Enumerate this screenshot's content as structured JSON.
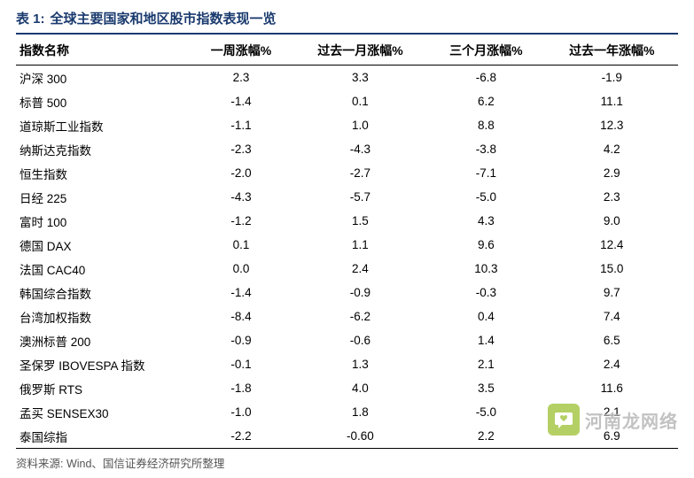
{
  "table": {
    "type": "table",
    "label": "表 1:",
    "title": "全球主要国家和地区股市指数表现一览",
    "title_color": "#1a3a6e",
    "title_fontsize": 15,
    "header_border_color": "#1a3a6e",
    "row_border_color": "#000000",
    "background_color": "#ffffff",
    "columns": [
      "指数名称",
      "一周涨幅%",
      "过去一月涨幅%",
      "三个月涨幅%",
      "过去一年涨幅%"
    ],
    "column_widths": [
      "26%",
      "16%",
      "20%",
      "18%",
      "20%"
    ],
    "column_align": [
      "left",
      "center",
      "center",
      "center",
      "center"
    ],
    "header_fontsize": 14,
    "cell_fontsize": 13.5,
    "rows": [
      [
        "沪深 300",
        "2.3",
        "3.3",
        "-6.8",
        "-1.9"
      ],
      [
        "标普 500",
        "-1.4",
        "0.1",
        "6.2",
        "11.1"
      ],
      [
        "道琼斯工业指数",
        "-1.1",
        "1.0",
        "8.8",
        "12.3"
      ],
      [
        "纳斯达克指数",
        "-2.3",
        "-4.3",
        "-3.8",
        "4.2"
      ],
      [
        "恒生指数",
        "-2.0",
        "-2.7",
        "-7.1",
        "2.9"
      ],
      [
        "日经 225",
        "-4.3",
        "-5.7",
        "-5.0",
        "2.3"
      ],
      [
        "富时 100",
        "-1.2",
        "1.5",
        "4.3",
        "9.0"
      ],
      [
        "德国 DAX",
        "0.1",
        "1.1",
        "9.6",
        "12.4"
      ],
      [
        "法国 CAC40",
        "0.0",
        "2.4",
        "10.3",
        "15.0"
      ],
      [
        "韩国综合指数",
        "-1.4",
        "-0.9",
        "-0.3",
        "9.7"
      ],
      [
        "台湾加权指数",
        "-8.4",
        "-6.2",
        "0.4",
        "7.4"
      ],
      [
        "澳洲标普 200",
        "-0.9",
        "-0.6",
        "1.4",
        "6.5"
      ],
      [
        "圣保罗 IBOVESPA 指数",
        "-0.1",
        "1.3",
        "2.1",
        "2.4"
      ],
      [
        "俄罗斯 RTS",
        "-1.8",
        "4.0",
        "3.5",
        "11.6"
      ],
      [
        "孟买 SENSEX30",
        "-1.0",
        "1.8",
        "-5.0",
        "2.1"
      ],
      [
        "泰国综指",
        "-2.2",
        "-0.60",
        "2.2",
        "6.9"
      ]
    ],
    "source": "资料来源:  Wind、国信证券经济研究所整理",
    "source_fontsize": 12.5,
    "source_color": "#555555"
  },
  "watermark": {
    "text": "河南龙网络",
    "text_color": "#b8b8b8",
    "text_fontsize": 20,
    "icon_bg": "#a8c84a",
    "icon_glyph": "♡"
  }
}
